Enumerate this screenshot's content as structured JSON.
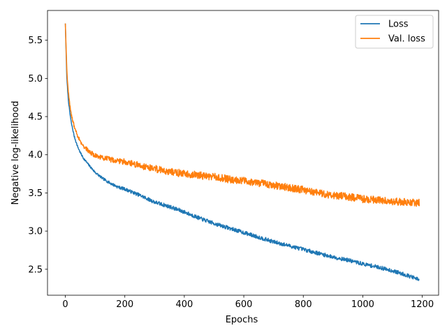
{
  "chart_data": {
    "type": "line",
    "xlabel": "Epochs",
    "ylabel": "Negative log-likelihood",
    "xlim": [
      -60,
      1255
    ],
    "ylim": [
      2.16,
      5.89
    ],
    "xticks": [
      0,
      200,
      400,
      600,
      800,
      1000,
      1200
    ],
    "yticks": [
      2.5,
      3.0,
      3.5,
      4.0,
      4.5,
      5.0,
      5.5
    ],
    "xtick_labels": [
      "0",
      "200",
      "400",
      "600",
      "800",
      "1000",
      "1200"
    ],
    "ytick_labels": [
      "2.5",
      "3.0",
      "3.5",
      "4.0",
      "4.5",
      "5.0",
      "5.5"
    ],
    "grid": false,
    "legend_position": "top-right",
    "series": [
      {
        "name": "Loss",
        "color": "#1f77b4",
        "x": [
          0,
          5,
          10,
          15,
          20,
          30,
          40,
          50,
          60,
          80,
          100,
          125,
          150,
          175,
          200,
          250,
          300,
          350,
          400,
          450,
          500,
          550,
          600,
          650,
          700,
          750,
          800,
          850,
          900,
          950,
          1000,
          1050,
          1100,
          1150,
          1190
        ],
        "y": [
          5.72,
          5.0,
          4.72,
          4.55,
          4.42,
          4.24,
          4.12,
          4.03,
          3.96,
          3.86,
          3.77,
          3.69,
          3.63,
          3.58,
          3.55,
          3.47,
          3.38,
          3.32,
          3.25,
          3.17,
          3.1,
          3.04,
          2.98,
          2.92,
          2.86,
          2.81,
          2.76,
          2.71,
          2.66,
          2.62,
          2.57,
          2.53,
          2.48,
          2.42,
          2.36
        ]
      },
      {
        "name": "Val. loss",
        "color": "#ff7f0e",
        "x": [
          0,
          5,
          10,
          15,
          20,
          30,
          40,
          50,
          60,
          80,
          100,
          125,
          150,
          175,
          200,
          250,
          300,
          350,
          400,
          450,
          500,
          550,
          600,
          650,
          700,
          750,
          800,
          850,
          900,
          950,
          1000,
          1050,
          1100,
          1150,
          1190
        ],
        "y": [
          5.72,
          5.1,
          4.82,
          4.65,
          4.52,
          4.37,
          4.26,
          4.18,
          4.12,
          4.04,
          3.99,
          3.96,
          3.94,
          3.92,
          3.91,
          3.86,
          3.82,
          3.78,
          3.75,
          3.73,
          3.71,
          3.68,
          3.66,
          3.63,
          3.6,
          3.57,
          3.54,
          3.5,
          3.47,
          3.45,
          3.42,
          3.41,
          3.39,
          3.38,
          3.37
        ]
      }
    ]
  }
}
